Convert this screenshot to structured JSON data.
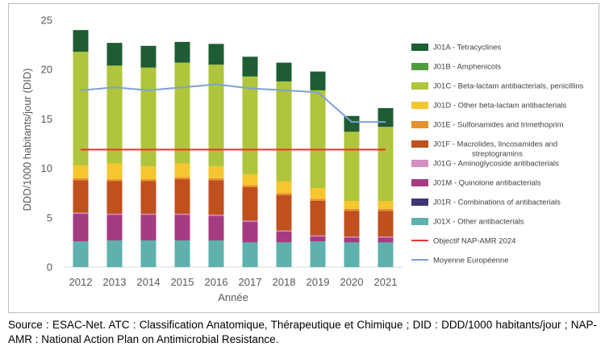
{
  "chart_data": {
    "type": "bar",
    "stacked": true,
    "title": "",
    "xlabel": "Année",
    "ylabel": "DDD/1000 habitants/jour (DID)",
    "ylim": [
      0,
      25
    ],
    "yticks": [
      0,
      5,
      10,
      15,
      20,
      25
    ],
    "grid": false,
    "legend_position": "right",
    "categories": [
      "2012",
      "2013",
      "2014",
      "2015",
      "2016",
      "2017",
      "2018",
      "2019",
      "2020",
      "2021"
    ],
    "series": [
      {
        "name": "J01X - Other antibacterials",
        "color": "#5eb1ac",
        "values": [
          2.6,
          2.7,
          2.7,
          2.7,
          2.7,
          2.5,
          2.5,
          2.6,
          2.5,
          2.5
        ]
      },
      {
        "name": "J01R - Combinations of antibacterials",
        "color": "#403476",
        "values": [
          0,
          0,
          0,
          0,
          0,
          0,
          0,
          0,
          0,
          0
        ]
      },
      {
        "name": "J01M - Quinolone antibacterials",
        "color": "#a53b80",
        "values": [
          2.8,
          2.6,
          2.6,
          2.6,
          2.5,
          2.1,
          1.1,
          0.5,
          0.5,
          0.5
        ]
      },
      {
        "name": "J01G - Aminoglycoside antibacterials",
        "color": "#d48ec4",
        "values": [
          0.1,
          0.1,
          0.1,
          0.1,
          0.1,
          0.1,
          0.1,
          0.1,
          0.1,
          0.1
        ]
      },
      {
        "name": "J01F - Macrolides, lincosamides and streptogramins",
        "color": "#c0501e",
        "values": [
          3.3,
          3.3,
          3.3,
          3.5,
          3.5,
          3.4,
          3.6,
          3.5,
          2.6,
          2.6
        ]
      },
      {
        "name": "J01E - Sulfonamides and trimethoprim",
        "color": "#e8912f",
        "values": [
          0.2,
          0.2,
          0.2,
          0.2,
          0.2,
          0.2,
          0.2,
          0.2,
          0.2,
          0.2
        ]
      },
      {
        "name": "J01D - Other beta-lactam antibacterials",
        "color": "#f6c62f",
        "values": [
          1.3,
          1.6,
          1.3,
          1.4,
          1.2,
          1.1,
          1.2,
          1.1,
          0.8,
          0.8
        ]
      },
      {
        "name": "J01C - Beta-lactam antibacterials, penicillins",
        "color": "#b0c43c",
        "values": [
          11.5,
          9.9,
          10.0,
          10.2,
          10.3,
          9.9,
          10.1,
          9.9,
          7.0,
          7.5
        ]
      },
      {
        "name": "J01B - Amphenicols",
        "color": "#4f9e3c",
        "values": [
          0,
          0,
          0,
          0,
          0,
          0,
          0,
          0,
          0,
          0
        ]
      },
      {
        "name": "J01A - Tetracyclines",
        "color": "#1e5c34",
        "values": [
          2.2,
          2.3,
          2.2,
          2.1,
          2.1,
          2.0,
          1.9,
          1.9,
          1.6,
          1.9
        ]
      }
    ],
    "lines": [
      {
        "name": "Objectif NAP-AMR 2024",
        "color": "#e8352b",
        "values": [
          11.9,
          11.9,
          11.9,
          11.9,
          11.9,
          11.9,
          11.9,
          11.9,
          11.9,
          11.9
        ]
      },
      {
        "name": "Moyenne Européenne",
        "color": "#7ea0d6",
        "values": [
          17.9,
          18.2,
          17.9,
          18.2,
          18.5,
          18.1,
          17.9,
          17.7,
          14.7,
          14.7
        ]
      }
    ],
    "legend_order": [
      "J01A - Tetracyclines",
      "J01B - Amphenicols",
      "J01C - Beta-lactam antibacterials, penicillins",
      "J01D - Other beta-lactam antibacterials",
      "J01E - Sulfonamides and trimethoprim",
      "J01F - Macrolides, lincosamides and streptogramins",
      "J01G - Aminoglycoside antibacterials",
      "J01M - Quinolone antibacterials",
      "J01R - Combinations of antibacterials",
      "J01X - Other antibacterials",
      "Objectif NAP-AMR 2024",
      "Moyenne Européenne"
    ]
  },
  "source_note": "Source : ESAC-Net. ATC : Classification Anatomique, Thérapeutique et Chimique ; DID : DDD/1000 habitants/jour ; NAP-AMR : National Action Plan on Antimicrobial Resistance."
}
